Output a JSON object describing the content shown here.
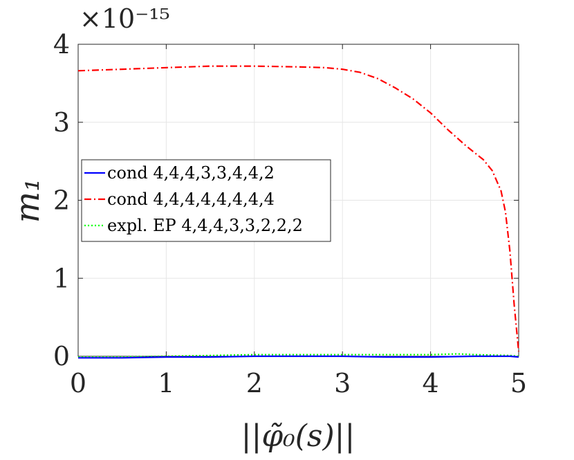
{
  "chart_data": {
    "type": "line",
    "title": "",
    "xlabel": "||φ̃₀(s)||",
    "ylabel": "m₁",
    "exponent_label": "×10⁻¹⁵",
    "xlim": [
      0,
      5
    ],
    "ylim": [
      0,
      4
    ],
    "xticks": [
      0,
      1,
      2,
      3,
      4,
      5
    ],
    "yticks": [
      0,
      1,
      2,
      3,
      4
    ],
    "xtick_labels": [
      "0",
      "1",
      "2",
      "3",
      "4",
      "5"
    ],
    "ytick_labels": [
      "0",
      "1",
      "2",
      "3",
      "4"
    ],
    "grid": true,
    "legend_position": "center-left",
    "series": [
      {
        "name": "cond 4,4,4,3,3,4,4,2",
        "color": "#0000ff",
        "style": "solid",
        "x": [
          0,
          0.5,
          1,
          1.5,
          2,
          2.5,
          3,
          3.5,
          4,
          4.5,
          4.9,
          5
        ],
        "y": [
          -0.02,
          -0.02,
          -0.01,
          -0.01,
          0.0,
          0.0,
          0.0,
          -0.01,
          -0.01,
          0.0,
          0.0,
          -0.01
        ]
      },
      {
        "name": "cond 4,4,4,4,4,4,4,4",
        "color": "#ff0000",
        "style": "dashdot",
        "x": [
          0,
          0.5,
          1,
          1.5,
          2,
          2.5,
          2.8,
          3.0,
          3.2,
          3.4,
          3.6,
          3.8,
          4.0,
          4.2,
          4.4,
          4.6,
          4.7,
          4.8,
          4.85,
          4.9,
          4.95,
          5.0
        ],
        "y": [
          3.66,
          3.68,
          3.7,
          3.72,
          3.72,
          3.71,
          3.7,
          3.68,
          3.64,
          3.56,
          3.44,
          3.3,
          3.12,
          2.9,
          2.7,
          2.52,
          2.38,
          2.12,
          1.85,
          1.35,
          0.65,
          0.06
        ]
      },
      {
        "name": "expl. EP 4,4,4,3,3,2,2,2",
        "color": "#00ff00",
        "style": "dotted",
        "x": [
          0,
          0.5,
          1,
          1.5,
          2,
          2.5,
          3,
          3.5,
          4,
          4.3,
          4.5,
          4.9,
          5
        ],
        "y": [
          -0.01,
          -0.01,
          0.0,
          0.01,
          0.02,
          0.02,
          0.02,
          0.02,
          0.02,
          0.03,
          0.02,
          0.01,
          0.0
        ]
      }
    ]
  }
}
